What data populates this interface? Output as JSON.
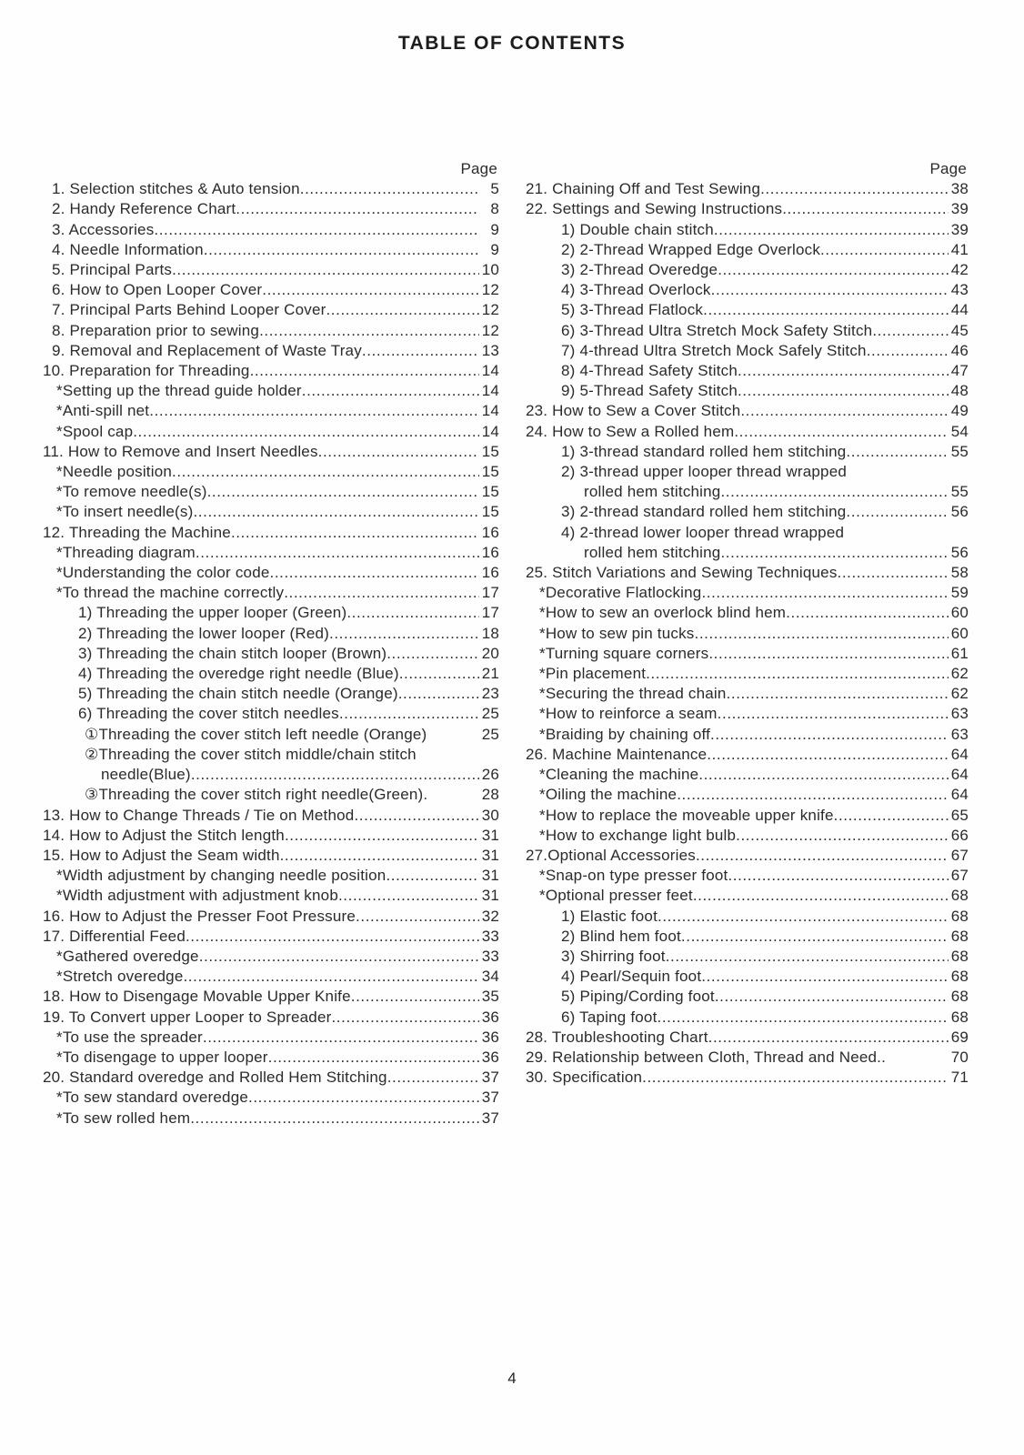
{
  "page": {
    "title": "TABLE OF CONTENTS",
    "column_header": "Page",
    "page_number": "4"
  },
  "toc": {
    "left": [
      {
        "indent": 0,
        "label": "1. Selection stitches & Auto tension",
        "page": "5"
      },
      {
        "indent": 0,
        "label": "2. Handy Reference Chart",
        "page": "8"
      },
      {
        "indent": 0,
        "label": "3. Accessories",
        "page": "9"
      },
      {
        "indent": 0,
        "label": "4. Needle Information",
        "page": "9"
      },
      {
        "indent": 0,
        "label": "5. Principal Parts",
        "page": "10"
      },
      {
        "indent": 0,
        "label": "6. How to Open Looper Cover",
        "page": "12"
      },
      {
        "indent": 0,
        "label": "7. Principal Parts Behind Looper Cover",
        "page": "12"
      },
      {
        "indent": 0,
        "label": "8. Preparation prior to sewing",
        "page": "12"
      },
      {
        "indent": 0,
        "label": "9. Removal and Replacement of Waste Tray",
        "page": "13"
      },
      {
        "indent": 0,
        "label": "10. Preparation for Threading",
        "page": "14"
      },
      {
        "indent": 1,
        "label": "*Setting up the thread guide holder",
        "page": "14"
      },
      {
        "indent": 1,
        "label": "*Anti-spill net",
        "page": "14"
      },
      {
        "indent": 1,
        "label": "*Spool cap",
        "page": "14"
      },
      {
        "indent": 0,
        "label": "11. How to Remove and Insert Needles",
        "page": "15"
      },
      {
        "indent": 1,
        "label": "*Needle position",
        "page": "15"
      },
      {
        "indent": 1,
        "label": "*To remove needle(s)",
        "page": "15"
      },
      {
        "indent": 1,
        "label": "*To insert needle(s)",
        "page": "15"
      },
      {
        "indent": 0,
        "label": "12. Threading the Machine",
        "page": "16"
      },
      {
        "indent": 1,
        "label": "*Threading diagram",
        "page": "16"
      },
      {
        "indent": 1,
        "label": "*Understanding the color code",
        "page": "16"
      },
      {
        "indent": 1,
        "label": "*To thread the machine correctly",
        "page": "17"
      },
      {
        "indent": 2,
        "label": "1) Threading the upper looper (Green)",
        "page": "17"
      },
      {
        "indent": 2,
        "label": "2) Threading the lower looper (Red)",
        "page": "18"
      },
      {
        "indent": 2,
        "label": "3) Threading the chain stitch looper (Brown)",
        "page": "20"
      },
      {
        "indent": 2,
        "label": "4) Threading the overedge right needle (Blue)",
        "page": "21"
      },
      {
        "indent": 2,
        "label": "5) Threading the chain stitch needle (Orange)",
        "page": "23"
      },
      {
        "indent": 2,
        "label": "6) Threading the cover stitch needles",
        "page": "25"
      },
      {
        "indent": 3,
        "label": "①Threading the cover stitch left needle (Orange)",
        "page": "25",
        "leader": false
      },
      {
        "indent": 3,
        "label": "②Threading the cover stitch middle/chain stitch",
        "page": "",
        "leader": false
      },
      {
        "indent": 4,
        "label": "needle(Blue)",
        "page": "26"
      },
      {
        "indent": 3,
        "label": "③Threading the cover stitch right needle(Green).",
        "page": "28",
        "leader": false
      },
      {
        "indent": 0,
        "label": "13. How to Change Threads / Tie on Method",
        "page": "30"
      },
      {
        "indent": 0,
        "label": "14. How to Adjust the Stitch length",
        "page": "31"
      },
      {
        "indent": 0,
        "label": "15. How to Adjust the Seam width",
        "page": "31"
      },
      {
        "indent": 1,
        "label": "*Width adjustment by changing needle position",
        "page": "31"
      },
      {
        "indent": 1,
        "label": "*Width adjustment with adjustment knob",
        "page": "31"
      },
      {
        "indent": 0,
        "label": "16. How to Adjust the Presser Foot Pressure",
        "page": "32"
      },
      {
        "indent": 0,
        "label": "17. Differential Feed",
        "page": "33"
      },
      {
        "indent": 1,
        "label": "*Gathered overedge",
        "page": "33"
      },
      {
        "indent": 1,
        "label": "*Stretch overedge",
        "page": "34"
      },
      {
        "indent": 0,
        "label": "18. How to Disengage Movable Upper Knife",
        "page": "35"
      },
      {
        "indent": 0,
        "label": "19. To Convert upper Looper to Spreader",
        "page": "36"
      },
      {
        "indent": 1,
        "label": "*To use the spreader",
        "page": "36"
      },
      {
        "indent": 1,
        "label": "*To disengage to upper looper",
        "page": "36"
      },
      {
        "indent": 0,
        "label": "20. Standard overedge and Rolled Hem Stitching",
        "page": "37"
      },
      {
        "indent": 1,
        "label": "*To sew standard overedge",
        "page": "37"
      },
      {
        "indent": 1,
        "label": "*To sew rolled hem",
        "page": "37"
      }
    ],
    "right": [
      {
        "indent": 0,
        "label": "21. Chaining Off and Test Sewing",
        "page": "38"
      },
      {
        "indent": 0,
        "label": "22. Settings and Sewing Instructions",
        "page": "39"
      },
      {
        "indent": 2,
        "label": "1) Double chain stitch",
        "page": "39"
      },
      {
        "indent": 2,
        "label": "2) 2-Thread Wrapped Edge Overlock",
        "page": "41"
      },
      {
        "indent": 2,
        "label": "3) 2-Thread Overedge",
        "page": "42"
      },
      {
        "indent": 2,
        "label": "4) 3-Thread Overlock",
        "page": "43"
      },
      {
        "indent": 2,
        "label": "5) 3-Thread Flatlock",
        "page": "44"
      },
      {
        "indent": 2,
        "label": "6) 3-Thread Ultra Stretch Mock Safety Stitch",
        "page": "45"
      },
      {
        "indent": 2,
        "label": "7) 4-thread Ultra Stretch Mock Safely Stitch",
        "page": "46"
      },
      {
        "indent": 2,
        "label": "8) 4-Thread Safety Stitch",
        "page": "47"
      },
      {
        "indent": 2,
        "label": "9) 5-Thread Safety Stitch",
        "page": "48"
      },
      {
        "indent": 0,
        "label": "23. How to Sew a Cover Stitch",
        "page": "49"
      },
      {
        "indent": 0,
        "label": "24. How to Sew a Rolled hem",
        "page": "54"
      },
      {
        "indent": 2,
        "label": "1) 3-thread standard rolled hem stitching",
        "page": "55"
      },
      {
        "indent": 2,
        "label": "2) 3-thread upper looper thread wrapped",
        "page": "",
        "leader": false
      },
      {
        "indent": 4,
        "label": "rolled hem stitching",
        "page": "55"
      },
      {
        "indent": 2,
        "label": "3) 2-thread standard rolled hem stitching",
        "page": "56"
      },
      {
        "indent": 2,
        "label": "4) 2-thread lower looper thread wrapped",
        "page": "",
        "leader": false
      },
      {
        "indent": 4,
        "label": "rolled hem stitching",
        "page": "56"
      },
      {
        "indent": 0,
        "label": "25. Stitch Variations and Sewing Techniques",
        "page": "58"
      },
      {
        "indent": 1,
        "label": "*Decorative Flatlocking",
        "page": "59"
      },
      {
        "indent": 1,
        "label": "*How to sew an overlock blind hem",
        "page": "60"
      },
      {
        "indent": 1,
        "label": "*How to sew pin tucks",
        "page": "60"
      },
      {
        "indent": 1,
        "label": "*Turning square corners",
        "page": "61"
      },
      {
        "indent": 1,
        "label": "*Pin placement",
        "page": "62"
      },
      {
        "indent": 1,
        "label": "*Securing the thread chain",
        "page": "62"
      },
      {
        "indent": 1,
        "label": "*How to reinforce a seam",
        "page": "63"
      },
      {
        "indent": 1,
        "label": "*Braiding by chaining off",
        "page": "63"
      },
      {
        "indent": 0,
        "label": "26. Machine Maintenance",
        "page": "64"
      },
      {
        "indent": 1,
        "label": "*Cleaning the machine",
        "page": "64"
      },
      {
        "indent": 1,
        "label": "*Oiling the machine",
        "page": "64"
      },
      {
        "indent": 1,
        "label": "*How to replace the moveable upper knife",
        "page": "65"
      },
      {
        "indent": 1,
        "label": "*How to exchange light bulb",
        "page": "66"
      },
      {
        "indent": 0,
        "label": "27.Optional Accessories",
        "page": "67"
      },
      {
        "indent": 1,
        "label": "*Snap-on type presser foot",
        "page": "67"
      },
      {
        "indent": 1,
        "label": "*Optional presser feet",
        "page": "68"
      },
      {
        "indent": 2,
        "label": "1) Elastic foot",
        "page": "68"
      },
      {
        "indent": 2,
        "label": "2) Blind hem foot",
        "page": "68"
      },
      {
        "indent": 2,
        "label": "3) Shirring foot",
        "page": "68"
      },
      {
        "indent": 2,
        "label": "4) Pearl/Sequin foot",
        "page": "68"
      },
      {
        "indent": 2,
        "label": "5) Piping/Cording foot",
        "page": "68"
      },
      {
        "indent": 2,
        "label": "6) Taping foot",
        "page": "68"
      },
      {
        "indent": 0,
        "label": "28. Troubleshooting Chart",
        "page": "69"
      },
      {
        "indent": 0,
        "label": "29. Relationship between Cloth, Thread and Need..",
        "page": "70",
        "leader": false
      },
      {
        "indent": 0,
        "label": "30. Specification",
        "page": "71"
      }
    ]
  }
}
